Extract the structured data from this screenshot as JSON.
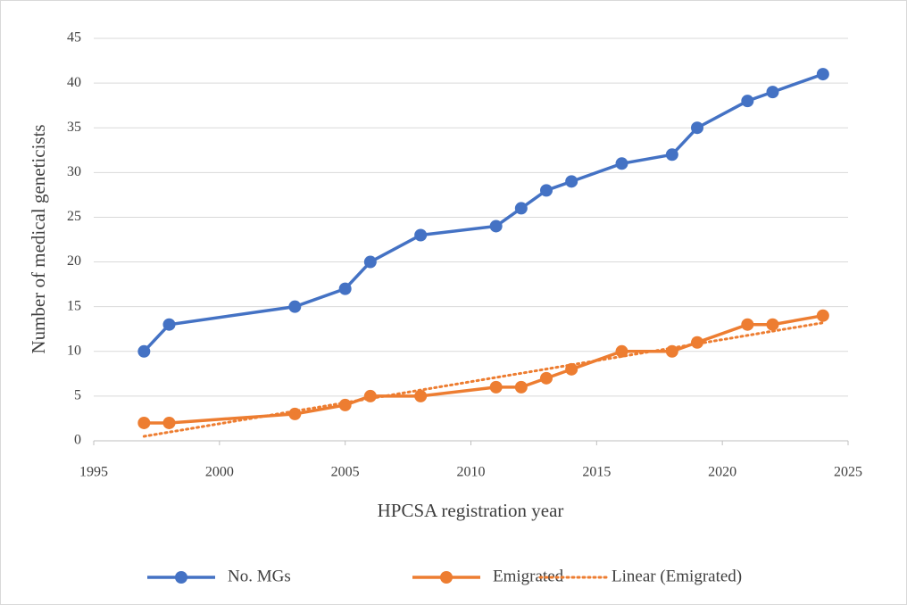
{
  "chart_data": {
    "type": "line",
    "x_label": "HPCSA registration year",
    "y_label": "Number of medical geneticists",
    "xlim": [
      1995,
      2025
    ],
    "xticks": [
      1995,
      2000,
      2005,
      2010,
      2015,
      2020,
      2025
    ],
    "ylim": [
      0,
      45
    ],
    "yticks": [
      0,
      5,
      10,
      15,
      20,
      25,
      30,
      35,
      40,
      45
    ],
    "grid": true,
    "legend": "bottom",
    "series": [
      {
        "name": "No. MGs",
        "color": "#4472c4",
        "style": "solid",
        "markers": true,
        "x": [
          1997,
          1998,
          2003,
          2005,
          2006,
          2008,
          2011,
          2012,
          2013,
          2014,
          2016,
          2018,
          2019,
          2021,
          2022,
          2024
        ],
        "values": [
          10,
          13,
          15,
          17,
          20,
          23,
          24,
          26,
          28,
          29,
          31,
          32,
          35,
          38,
          39,
          41
        ]
      },
      {
        "name": "Emigrated",
        "color": "#ed7d31",
        "style": "solid",
        "markers": true,
        "x": [
          1997,
          1998,
          2003,
          2005,
          2006,
          2008,
          2011,
          2012,
          2013,
          2014,
          2016,
          2018,
          2019,
          2021,
          2022,
          2024
        ],
        "values": [
          2,
          2,
          3,
          4,
          5,
          5,
          6,
          6,
          7,
          8,
          10,
          10,
          11,
          13,
          13,
          14
        ]
      },
      {
        "name": "Linear (Emigrated)",
        "color": "#ed7d31",
        "style": "dotted",
        "markers": false,
        "x": [
          1997,
          2024
        ],
        "values": [
          0.5,
          13.2
        ]
      }
    ]
  }
}
